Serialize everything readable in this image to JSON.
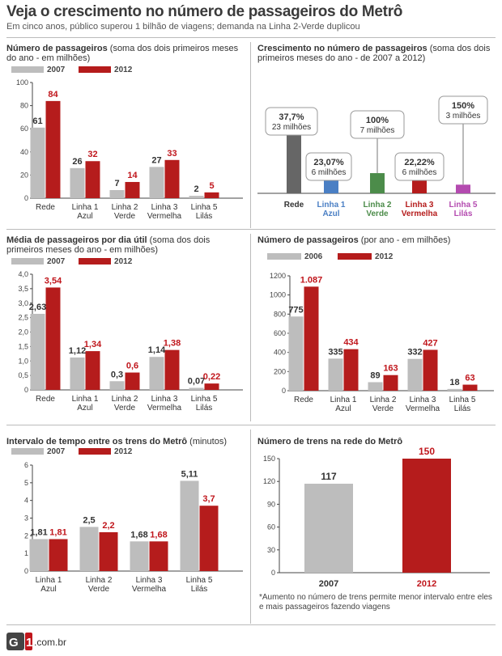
{
  "title": "Veja o crescimento no número de passageiros do Metrô",
  "subtitle": "Em cinco anos, público superou 1 bilhão de viagens; demanda na Linha 2-Verde duplicou",
  "colors": {
    "old": "#bdbdbd",
    "new": "#b51c1c",
    "label_new": "#c0161c",
    "label_old": "#333333",
    "rede": "#666666",
    "azul": "#4a7fc4",
    "verde": "#4c8c4a",
    "vermelha": "#b51c1c",
    "lilas": "#b44bb0"
  },
  "footer": {
    "logo": "G1",
    "domain": ".com.br"
  },
  "note": "*Aumento no número de trens permite menor intervalo entre eles e mais passageiros fazendo viagens",
  "chart_data": [
    {
      "id": "passageiros_bimestre",
      "type": "bar",
      "title": "Número de passageiros",
      "title_rest": " (soma dos dois primeiros meses do ano - em milhões)",
      "categories": [
        "Rede",
        "Linha 1\nAzul",
        "Linha 2\nVerde",
        "Linha 3\nVermelha",
        "Linha 5\nLilás"
      ],
      "series": [
        {
          "name": "2007",
          "values": [
            61,
            26,
            7,
            27,
            2
          ],
          "labels": [
            "61",
            "26",
            "7",
            "27",
            "2"
          ]
        },
        {
          "name": "2012",
          "values": [
            84,
            32,
            14,
            33,
            5
          ],
          "labels": [
            "84",
            "32",
            "14",
            "33",
            "5"
          ]
        }
      ],
      "ylim": [
        0,
        100
      ],
      "yticks": [
        "0",
        "20",
        "40",
        "60",
        "80",
        "100"
      ],
      "grid": false
    },
    {
      "id": "crescimento",
      "type": "bar",
      "title": "Crescimento no número de passageiros",
      "title_rest": " (soma dos dois primeiros meses do ano - de 2007 a 2012)",
      "categories": [
        "Rede",
        "Linha 1\nAzul",
        "Linha 2\nVerde",
        "Linha 3\nVermelha",
        "Linha 5\nLilás"
      ],
      "values": [
        23,
        6,
        7,
        6,
        3
      ],
      "callouts": [
        {
          "pct": "37,7%",
          "abs": "23 milhões"
        },
        {
          "pct": "23,07%",
          "abs": "6 milhões"
        },
        {
          "pct": "100%",
          "abs": "7 milhões"
        },
        {
          "pct": "22,22%",
          "abs": "6 milhões"
        },
        {
          "pct": "150%",
          "abs": "3 milhões"
        }
      ],
      "growth_pct": [
        37.7,
        23.07,
        100,
        22.22,
        150
      ]
    },
    {
      "id": "media_dia_util",
      "type": "bar",
      "title": "Média de passageiros por dia útil",
      "title_rest": " (soma dos dois primeiros meses do ano - em milhões)",
      "categories": [
        "Rede",
        "Linha 1\nAzul",
        "Linha 2\nVerde",
        "Linha 3\nVermelha",
        "Linha 5\nLilás"
      ],
      "series": [
        {
          "name": "2007",
          "values": [
            2.63,
            1.12,
            0.3,
            1.14,
            0.07
          ],
          "labels": [
            "2,63",
            "1,12",
            "0,3",
            "1,14",
            "0,07"
          ]
        },
        {
          "name": "2012",
          "values": [
            3.54,
            1.34,
            0.6,
            1.38,
            0.22
          ],
          "labels": [
            "3,54",
            "1,34",
            "0,6",
            "1,38",
            "0,22"
          ]
        }
      ],
      "ylim": [
        0,
        4.0
      ],
      "yticks": [
        "0",
        "0,5",
        "1,0",
        "1,5",
        "2,0",
        "2,5",
        "3,0",
        "3,5",
        "4,0"
      ],
      "grid": false
    },
    {
      "id": "passageiros_ano",
      "type": "bar",
      "title": "Número de passageiros",
      "title_rest": " (por ano - em milhões)",
      "categories": [
        "Rede",
        "Linha 1\nAzul",
        "Linha 2\nVerde",
        "Linha 3\nVermelha",
        "Linha 5\nLilás"
      ],
      "series": [
        {
          "name": "2006",
          "values": [
            775,
            335,
            89,
            332,
            18
          ],
          "labels": [
            "775",
            "335",
            "89",
            "332",
            "18"
          ]
        },
        {
          "name": "2012",
          "values": [
            1087,
            434,
            163,
            427,
            63
          ],
          "labels": [
            "1.087",
            "434",
            "163",
            "427",
            "63"
          ]
        }
      ],
      "ylim": [
        0,
        1200
      ],
      "yticks": [
        "0",
        "200",
        "400",
        "600",
        "800",
        "1000",
        "1200"
      ],
      "grid": false
    },
    {
      "id": "intervalo",
      "type": "bar",
      "title": "Intervalo de tempo entre os trens do Metrô",
      "title_rest": " (minutos)",
      "categories": [
        "Linha 1\nAzul",
        "Linha 2\nVerde",
        "Linha 3\nVermelha",
        "Linha 5\nLilás"
      ],
      "series": [
        {
          "name": "2007",
          "values": [
            1.81,
            2.5,
            1.68,
            5.11
          ],
          "labels": [
            "1,81",
            "2,5",
            "1,68",
            "5,11"
          ]
        },
        {
          "name": "2012",
          "values": [
            1.81,
            2.2,
            1.68,
            3.7
          ],
          "labels": [
            "1,81",
            "2,2",
            "1,68",
            "3,7"
          ]
        }
      ],
      "ylim": [
        0,
        6
      ],
      "yticks": [
        "0",
        "1",
        "2",
        "3",
        "4",
        "5",
        "6"
      ],
      "grid": false
    },
    {
      "id": "trens",
      "type": "bar",
      "title": "Número de trens na rede do Metrô",
      "title_rest": "",
      "categories": [
        "2007",
        "2012"
      ],
      "values": [
        117,
        150
      ],
      "labels": [
        "117",
        "150"
      ],
      "ylim": [
        0,
        150
      ],
      "yticks": [
        "0",
        "30",
        "60",
        "90",
        "120",
        "150"
      ],
      "grid": false
    }
  ]
}
